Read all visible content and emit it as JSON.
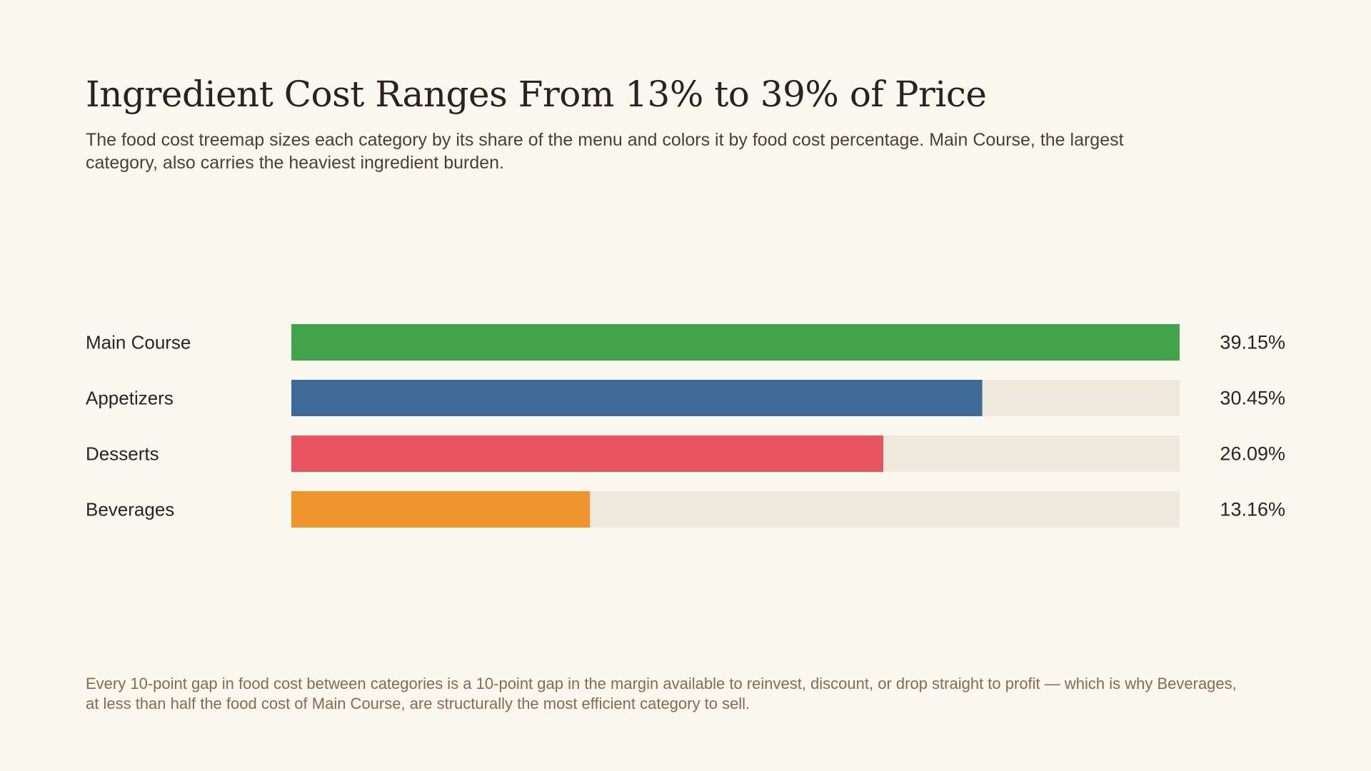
{
  "title": "Ingredient Cost Ranges From 13% to 39% of Price",
  "subtitle": "The food cost treemap sizes each category by its share of the menu and colors it by food cost percentage. Main Course, the largest category, also carries the heaviest ingredient burden.",
  "footnote": "Every 10-point gap in food cost between categories is a 10-point gap in the margin available to reinvest, discount, or drop straight to profit — which is why Beverages, at less than half the food cost of Main Course, are structurally the most efficient category to sell.",
  "colors": {
    "track": "#efe9dd",
    "Main Course": "#43a34b",
    "Appetizers": "#3e6a97",
    "Desserts": "#e8545f",
    "Beverages": "#f0952e"
  },
  "chart_data": {
    "type": "bar",
    "orientation": "horizontal",
    "categories": [
      "Main Course",
      "Appetizers",
      "Desserts",
      "Beverages"
    ],
    "values": [
      39.15,
      30.45,
      26.09,
      13.16
    ],
    "value_labels": [
      "39.15%",
      "30.45%",
      "26.09%",
      "13.16%"
    ],
    "xlim": [
      0,
      39.15
    ],
    "grid": false,
    "legend": "none"
  }
}
